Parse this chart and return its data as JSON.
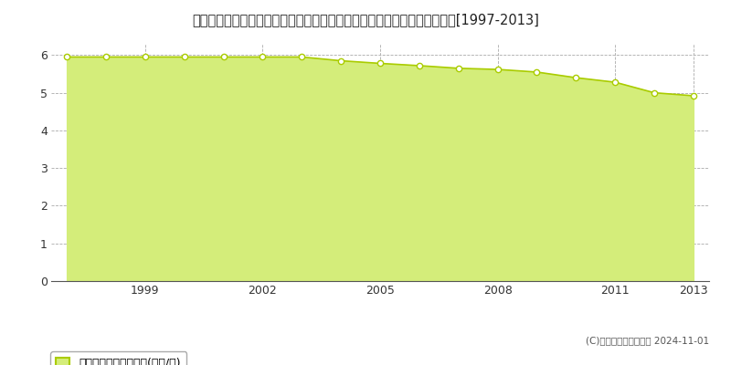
{
  "title": "宮崎県児湯郡木城町大字高城字中河原４０７０番３　基準地価　地価推移[1997-2013]",
  "years": [
    1997,
    1998,
    1999,
    2000,
    2001,
    2002,
    2003,
    2004,
    2005,
    2006,
    2007,
    2008,
    2009,
    2010,
    2011,
    2012,
    2013
  ],
  "values": [
    5.95,
    5.95,
    5.95,
    5.95,
    5.95,
    5.95,
    5.95,
    5.85,
    5.78,
    5.72,
    5.65,
    5.62,
    5.55,
    5.4,
    5.28,
    5.0,
    4.92
  ],
  "fill_color": "#d4ed7a",
  "line_color": "#aacc00",
  "marker_color": "#ffffff",
  "marker_edge_color": "#aacc00",
  "grid_color": "#aaaaaa",
  "background_color": "#ffffff",
  "plot_bg_color": "#ffffff",
  "ylim": [
    0,
    6.3
  ],
  "yticks": [
    0,
    1,
    2,
    3,
    4,
    5,
    6
  ],
  "xtick_years": [
    1999,
    2002,
    2005,
    2008,
    2011,
    2013
  ],
  "legend_label": "基準地価　平均嵪単価(万円/嵪)",
  "copyright_text": "(C)土地価格ドットコム 2024-11-01",
  "title_fontsize": 10.5,
  "axis_fontsize": 9,
  "legend_fontsize": 9
}
